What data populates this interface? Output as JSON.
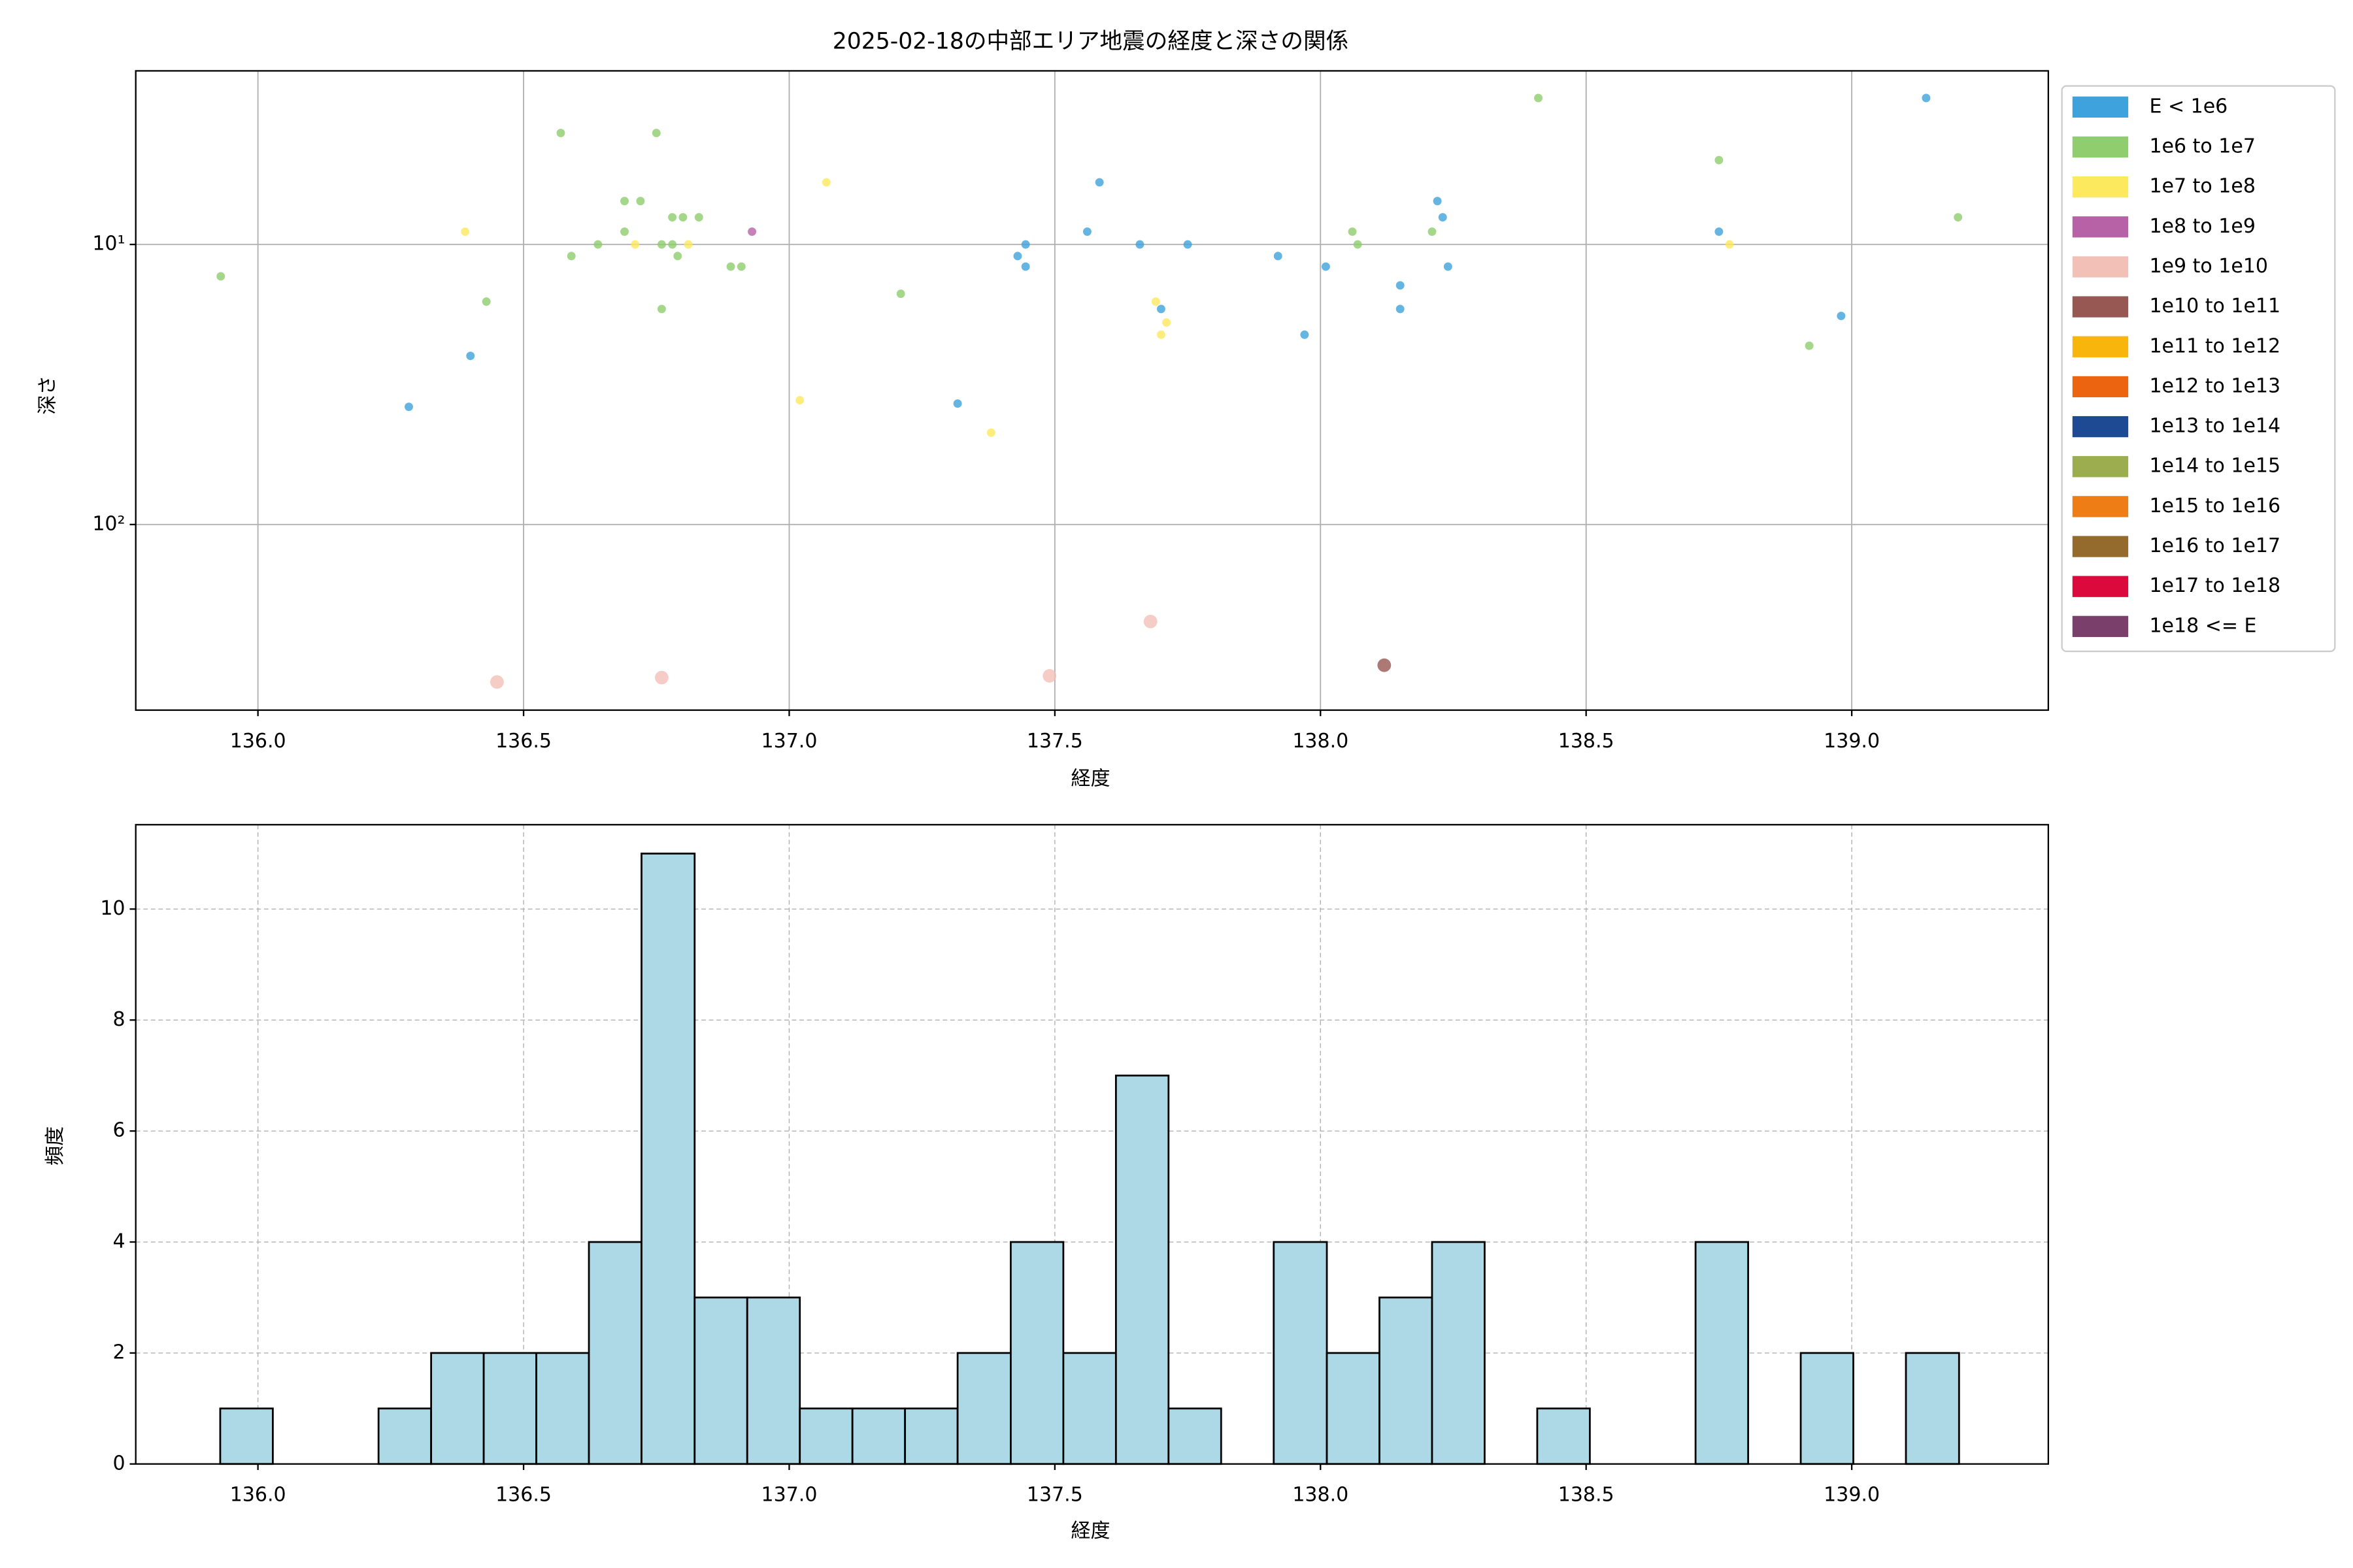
{
  "chart_data": [
    {
      "type": "scatter",
      "title": "2025-02-18の中部エリア地震の経度と深さの関係",
      "xlabel": "経度",
      "ylabel": "深さ",
      "xlim": [
        135.77,
        139.37
      ],
      "ylim": [
        460,
        2.4
      ],
      "yscale": "log",
      "grid": true,
      "legend": "outside right",
      "xticks": [
        {
          "value": 136,
          "label": "136.0"
        },
        136.5,
        {
          "value": 137,
          "label": "137.0"
        },
        137.5,
        {
          "value": 138,
          "label": "138.0"
        },
        138.5,
        {
          "value": 139,
          "label": "139.0"
        }
      ],
      "yticks": [
        {
          "value": 10,
          "label": "10¹"
        },
        {
          "value": 100,
          "label": "10²"
        }
      ],
      "series": [
        {
          "name": "E < 1e6",
          "color": "#3ea2dc",
          "x": [
            136.284,
            136.4,
            137.317,
            137.43,
            137.445,
            137.445,
            137.561,
            137.584,
            137.66,
            137.7,
            137.75,
            137.92,
            137.97,
            138.01,
            138.15,
            138.15,
            138.22,
            138.23,
            138.24,
            138.75,
            138.98,
            139.14
          ],
          "values": [
            38,
            25,
            37,
            11,
            10,
            12,
            9,
            6,
            10,
            17,
            10,
            11,
            21,
            12,
            14,
            17,
            7,
            8,
            12,
            9,
            18,
            3
          ]
        },
        {
          "name": "1e6 to 1e7",
          "color": "#8fcd6e",
          "x": [
            135.93,
            136.43,
            136.57,
            136.59,
            136.64,
            136.69,
            136.69,
            136.72,
            136.75,
            136.76,
            136.76,
            136.78,
            136.78,
            136.79,
            136.8,
            136.83,
            136.89,
            136.91,
            137.21,
            138.06,
            138.07,
            138.21,
            138.41,
            138.75,
            138.92,
            139.2
          ],
          "values": [
            13,
            16,
            4,
            11,
            10,
            7,
            9,
            7,
            4,
            10,
            17,
            8,
            10,
            11,
            8,
            8,
            12,
            12,
            15,
            9,
            10,
            9,
            3,
            5,
            23,
            8
          ]
        },
        {
          "name": "1e7 to 1e8",
          "color": "#fde95e",
          "x": [
            136.39,
            136.71,
            136.81,
            137.07,
            137.02,
            137.38,
            137.69,
            137.7,
            137.71,
            138.77
          ],
          "values": [
            9,
            10,
            10,
            6,
            36,
            47,
            16,
            21,
            19,
            10
          ]
        },
        {
          "name": "1e8 to 1e9",
          "color": "#b761a6",
          "x": [
            136.93
          ],
          "values": [
            9
          ]
        },
        {
          "name": "1e9 to 1e10",
          "color": "#f3c0b8",
          "x": [
            136.45,
            136.76,
            137.49,
            137.68
          ],
          "values": [
            365,
            352,
            347,
            222
          ]
        },
        {
          "name": "1e10 to 1e11",
          "color": "#975752",
          "x": [
            138.12
          ],
          "values": [
            318
          ]
        },
        {
          "name": "1e11 to 1e12",
          "color": "#f8b50c",
          "x": [],
          "values": []
        },
        {
          "name": "1e12 to 1e13",
          "color": "#ec6410",
          "x": [],
          "values": []
        },
        {
          "name": "1e13 to 1e14",
          "color": "#1d4a93",
          "x": [],
          "values": []
        },
        {
          "name": "1e14 to 1e15",
          "color": "#9cad4f",
          "x": [],
          "values": []
        },
        {
          "name": "1e15 to 1e16",
          "color": "#ed7d14",
          "x": [],
          "values": []
        },
        {
          "name": "1e16 to 1e17",
          "color": "#946b2d",
          "x": [],
          "values": []
        },
        {
          "name": "1e17 to 1e18",
          "color": "#dc0a3c",
          "x": [],
          "values": []
        },
        {
          "name": "1e18 <= E",
          "color": "#7b3f6b",
          "x": [],
          "values": []
        }
      ]
    },
    {
      "type": "histogram",
      "xlabel": "経度",
      "ylabel": "頻度",
      "xlim": [
        135.77,
        139.37
      ],
      "ylim": [
        0,
        11.52
      ],
      "grid": "dashed",
      "color": "#add8e6",
      "edgecolor": "#000000",
      "xticks": [
        {
          "value": 136,
          "label": "136.0"
        },
        136.5,
        {
          "value": 137,
          "label": "137.0"
        },
        137.5,
        {
          "value": 138,
          "label": "138.0"
        },
        138.5,
        {
          "value": 139,
          "label": "139.0"
        }
      ],
      "yticks": [
        0,
        2,
        4,
        6,
        8,
        10
      ],
      "bins": [
        135.929,
        136.028,
        136.127,
        136.227,
        136.326,
        136.425,
        136.524,
        136.623,
        136.722,
        136.822,
        136.921,
        137.02,
        137.119,
        137.218,
        137.317,
        137.417,
        137.516,
        137.615,
        137.714,
        137.813,
        137.912,
        138.012,
        138.111,
        138.21,
        138.309,
        138.408,
        138.507,
        138.607,
        138.706,
        138.805,
        138.904,
        139.003,
        139.102,
        139.202
      ],
      "values": [
        1,
        0,
        0,
        1,
        2,
        2,
        2,
        4,
        11,
        3,
        3,
        1,
        1,
        1,
        2,
        4,
        2,
        7,
        1,
        0,
        4,
        2,
        3,
        4,
        0,
        1,
        0,
        0,
        4,
        0,
        2,
        0,
        2
      ]
    }
  ]
}
